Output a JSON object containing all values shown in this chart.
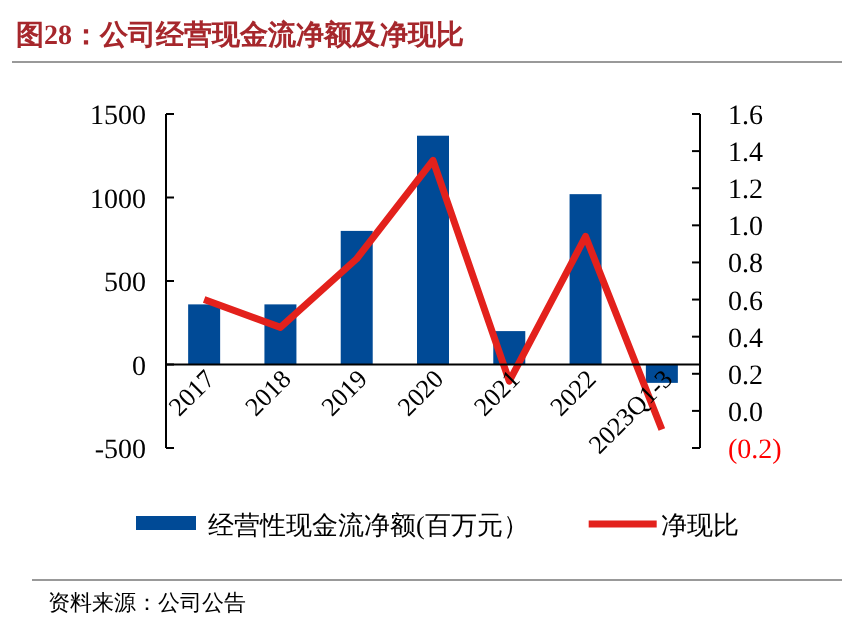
{
  "chart_data": {
    "type": "bar",
    "title": "图28：公司经营现金流净额及净现比",
    "categories": [
      "2017",
      "2018",
      "2019",
      "2020",
      "2021",
      "2022",
      "2023Q1-3"
    ],
    "series": [
      {
        "name": "经营性现金流净额(百万元）",
        "color": "#004a96",
        "values": [
          360,
          360,
          800,
          1370,
          200,
          1020,
          -110
        ]
      },
      {
        "name": "净现比",
        "type": "line",
        "axis": "y2",
        "color": "#e3211c",
        "values": [
          0.6,
          0.45,
          0.82,
          1.35,
          0.16,
          0.94,
          -0.1
        ]
      }
    ],
    "ylim": [
      -500,
      1500
    ],
    "yticks": [
      -500,
      0,
      500,
      1000,
      1500
    ],
    "y2lim": [
      -0.2,
      1.6
    ],
    "y2ticks": [
      {
        "value": -0.2,
        "label": "(0.2)"
      },
      {
        "value": 0,
        "label": "0.0"
      },
      0.2,
      0.4,
      0.6,
      0.8,
      {
        "value": 1,
        "label": "1.0"
      },
      1.2,
      1.4,
      1.6
    ],
    "legend": "bottom",
    "grid": false,
    "annotations": [
      "资料来源：公司公告"
    ]
  }
}
